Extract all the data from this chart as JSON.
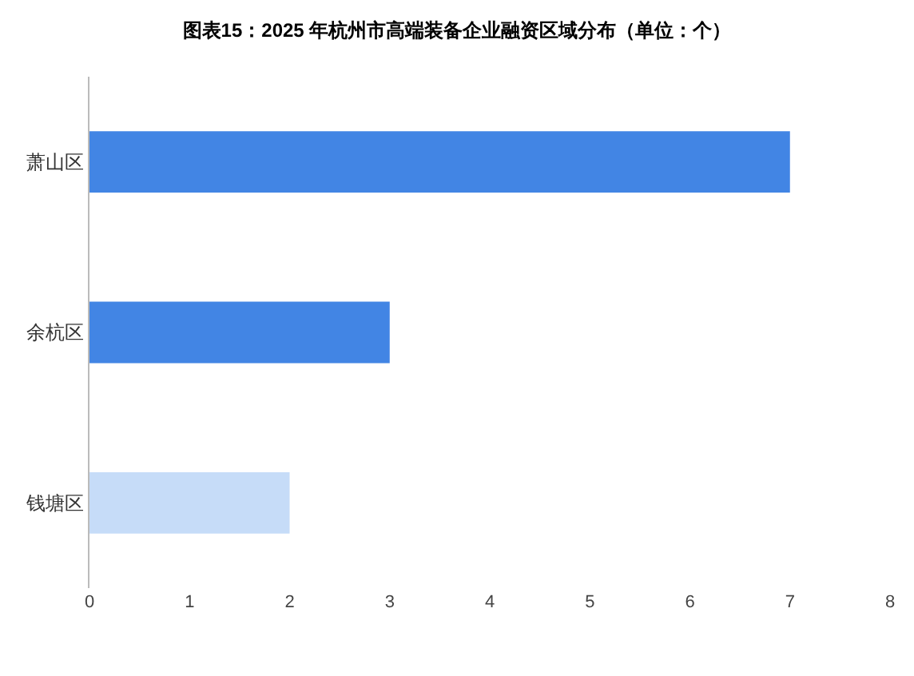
{
  "chart_data": {
    "type": "bar",
    "orientation": "horizontal",
    "title": "图表15：2025 年杭州市高端装备企业融资区域分布（单位：个）",
    "categories": [
      "萧山区",
      "余杭区",
      "钱塘区"
    ],
    "values": [
      7,
      3,
      2
    ],
    "colors": [
      "#4285e4",
      "#4285e4",
      "#c6dcf8"
    ],
    "xlim": [
      0,
      8
    ],
    "xticks": [
      0,
      1,
      2,
      3,
      4,
      5,
      6,
      7,
      8
    ],
    "grid": false
  }
}
